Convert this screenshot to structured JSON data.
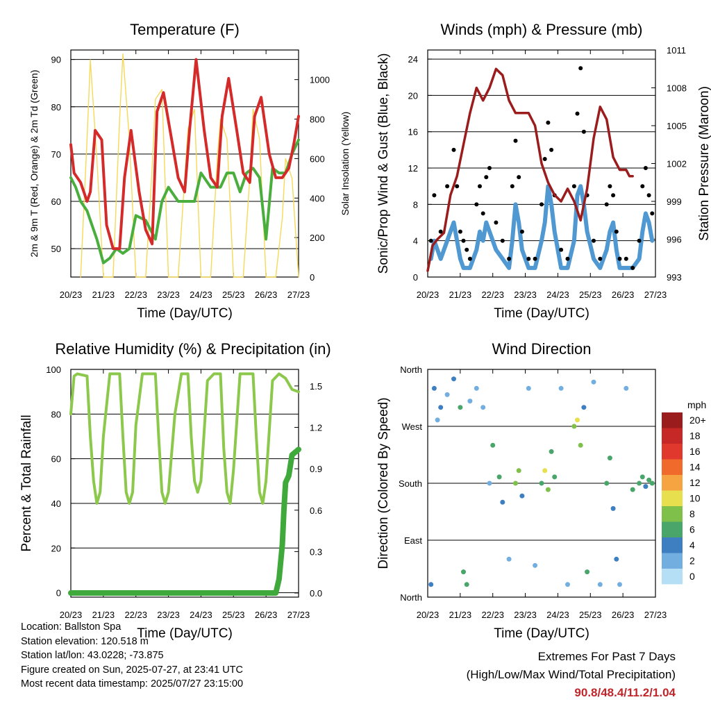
{
  "chart_data": [
    {
      "type": "line",
      "title": "Temperature (F)",
      "xlabel": "Time (Day/UTC)",
      "ylabel": "2m & 9m T (Red, Orange) & 2m Td (Green)",
      "y2label": "Solar Insolation (Yellow)",
      "ylim": [
        44,
        92
      ],
      "y2lim": [
        0,
        1150
      ],
      "yticks": [
        50,
        60,
        70,
        80,
        90
      ],
      "y2ticks": [
        0,
        200,
        400,
        600,
        800,
        1000
      ],
      "xticks": [
        "20/23",
        "21/23",
        "22/23",
        "23/23",
        "24/23",
        "25/23",
        "26/23",
        "27/23"
      ],
      "grid": true,
      "series": [
        {
          "name": "2m T",
          "color": "#d42a2a",
          "x": [
            0,
            0.1,
            0.3,
            0.5,
            0.6,
            0.75,
            0.95,
            1.1,
            1.3,
            1.5,
            1.65,
            1.85,
            2.1,
            2.3,
            2.5,
            2.65,
            2.85,
            3.1,
            3.3,
            3.5,
            3.65,
            3.85,
            4.1,
            4.3,
            4.5,
            4.65,
            4.85,
            5.1,
            5.3,
            5.5,
            5.65,
            5.85,
            6.1,
            6.3,
            6.5,
            6.7,
            6.85,
            7.0
          ],
          "values": [
            72,
            66,
            64,
            60,
            62,
            75,
            73,
            55,
            50,
            50,
            65,
            75,
            62,
            54,
            51,
            79,
            83,
            73,
            65,
            62,
            75,
            90,
            75,
            65,
            63,
            78,
            86,
            75,
            66,
            64,
            78,
            82,
            70,
            65,
            65,
            67,
            72,
            78
          ]
        },
        {
          "name": "2m Td",
          "color": "#4aae3e",
          "x": [
            0,
            0.15,
            0.3,
            0.5,
            0.6,
            0.8,
            1.0,
            1.2,
            1.4,
            1.6,
            1.8,
            2.0,
            2.3,
            2.6,
            2.8,
            3.0,
            3.3,
            3.5,
            3.8,
            4.0,
            4.3,
            4.6,
            4.8,
            5.0,
            5.2,
            5.4,
            5.6,
            5.8,
            6.0,
            6.2,
            6.4,
            6.6,
            6.8,
            7.0
          ],
          "values": [
            65,
            63,
            60,
            58,
            56,
            52,
            47,
            48,
            50,
            49,
            50,
            57,
            56,
            52,
            60,
            63,
            60,
            60,
            60,
            66,
            63,
            63,
            66,
            66,
            62,
            66,
            67,
            65,
            52,
            67,
            66,
            66,
            70,
            73
          ]
        },
        {
          "name": "Solar Insolation",
          "color": "#f4d95a",
          "axis": "y2",
          "x": [
            0.3,
            0.5,
            0.6,
            0.8,
            1.0,
            1.3,
            1.5,
            1.6,
            1.8,
            2.0,
            2.3,
            2.5,
            2.6,
            2.8,
            3.0,
            3.3,
            3.5,
            3.6,
            3.8,
            4.0,
            4.3,
            4.5,
            4.6,
            4.8,
            5.0,
            5.3,
            5.5,
            5.6,
            5.8,
            6.0,
            6.3,
            6.5,
            6.6,
            6.8,
            7.0
          ],
          "values": [
            0,
            700,
            1100,
            600,
            0,
            0,
            800,
            1130,
            700,
            0,
            0,
            550,
            900,
            950,
            0,
            0,
            500,
            750,
            850,
            0,
            0,
            600,
            800,
            700,
            0,
            0,
            500,
            850,
            700,
            0,
            0,
            300,
            600,
            500,
            0
          ]
        }
      ]
    },
    {
      "type": "line",
      "title": "Winds (mph) & Pressure (mb)",
      "xlabel": "Time (Day/UTC)",
      "ylabel": "Sonic/Prop Wind & Gust (Blue, Black)",
      "y2label": "Station Pressure (Maroon)",
      "ylim": [
        0,
        25
      ],
      "y2lim": [
        993,
        1011
      ],
      "yticks": [
        0,
        4,
        8,
        12,
        16,
        20,
        24
      ],
      "y2ticks": [
        993,
        996,
        999,
        1002,
        1005,
        1008,
        1011
      ],
      "xticks": [
        "20/23",
        "21/23",
        "22/23",
        "23/23",
        "24/23",
        "25/23",
        "26/23",
        "27/23"
      ],
      "grid": true,
      "series": [
        {
          "name": "Station Pressure",
          "color": "#9b1c1c",
          "axis": "y2",
          "x": [
            0,
            0.15,
            0.3,
            0.5,
            0.7,
            0.9,
            1.1,
            1.3,
            1.5,
            1.7,
            1.9,
            2.1,
            2.3,
            2.5,
            2.7,
            2.9,
            3.1,
            3.3,
            3.5,
            3.7,
            3.9,
            4.1,
            4.3,
            4.5,
            4.7,
            4.9,
            5.1,
            5.3,
            5.5,
            5.7,
            5.9,
            6.1,
            6.2,
            6.3
          ],
          "values": [
            993.5,
            995.5,
            996,
            996.5,
            999.5,
            1001,
            1003.5,
            1006,
            1008,
            1007,
            1008,
            1009.5,
            1009,
            1007,
            1006,
            1006,
            1006,
            1005,
            1002,
            1000.5,
            999.5,
            999,
            1000,
            999,
            997.5,
            1000,
            1004,
            1006.5,
            1005.5,
            1002.5,
            1001.5,
            1001.5,
            1001,
            1001
          ]
        },
        {
          "name": "Gust",
          "color": "#000000",
          "kind": "scatter",
          "x": [
            0.1,
            0.2,
            0.4,
            0.6,
            0.8,
            0.9,
            1.0,
            1.1,
            1.2,
            1.3,
            1.5,
            1.6,
            1.7,
            1.8,
            1.9,
            2.1,
            2.3,
            2.5,
            2.6,
            2.7,
            2.8,
            2.9,
            3.1,
            3.3,
            3.5,
            3.6,
            3.7,
            3.8,
            3.9,
            4.1,
            4.3,
            4.5,
            4.6,
            4.7,
            4.8,
            4.9,
            5.1,
            5.3,
            5.5,
            5.6,
            5.7,
            5.8,
            5.9,
            6.1,
            6.3,
            6.5,
            6.6,
            6.7,
            6.8,
            6.9
          ],
          "values": [
            4,
            9,
            5,
            10,
            14,
            10,
            5,
            4,
            3,
            2,
            8,
            10,
            7,
            11,
            12,
            6,
            4,
            2,
            10,
            15,
            11,
            5,
            2,
            2,
            8,
            13,
            17,
            14,
            9,
            3,
            2,
            10,
            18,
            23,
            16,
            9,
            4,
            2,
            8,
            10,
            9,
            5,
            2,
            2,
            1,
            4,
            10,
            12,
            9,
            7
          ]
        },
        {
          "name": "Wind",
          "color": "#4f98d2",
          "x": [
            0.1,
            0.2,
            0.4,
            0.6,
            0.8,
            0.9,
            1.0,
            1.1,
            1.2,
            1.3,
            1.5,
            1.6,
            1.7,
            1.8,
            1.9,
            2.1,
            2.3,
            2.5,
            2.6,
            2.7,
            2.8,
            2.9,
            3.1,
            3.3,
            3.5,
            3.6,
            3.7,
            3.8,
            3.9,
            4.1,
            4.3,
            4.5,
            4.6,
            4.7,
            4.8,
            4.9,
            5.1,
            5.3,
            5.5,
            5.6,
            5.7,
            5.8,
            5.9,
            6.1,
            6.3,
            6.5,
            6.6,
            6.7,
            6.8,
            6.9
          ],
          "values": [
            2,
            4,
            2,
            4,
            6,
            4,
            2,
            1,
            1,
            1,
            3,
            5,
            4,
            6,
            5,
            3,
            2,
            1,
            4,
            8,
            6,
            3,
            1,
            1,
            4,
            6,
            10,
            8,
            5,
            1,
            1,
            4,
            9,
            10,
            8,
            5,
            2,
            1,
            3,
            5,
            6,
            3,
            1,
            1,
            1,
            2,
            5,
            7,
            6,
            4
          ]
        }
      ]
    },
    {
      "type": "line",
      "title": "Relative Humidity (%) & Precipitation (in)",
      "xlabel": "Time (Day/UTC)",
      "ylabel": "Percent & Total Rainfall",
      "ylim": [
        -2,
        100
      ],
      "y2lim": [
        -0.03,
        1.62
      ],
      "yticks": [
        0,
        20,
        40,
        60,
        80,
        100
      ],
      "y2ticks": [
        0.0,
        0.3,
        0.6,
        0.9,
        1.2,
        1.5
      ],
      "xticks": [
        "20/23",
        "21/23",
        "22/23",
        "23/23",
        "24/23",
        "25/23",
        "26/23",
        "27/23"
      ],
      "grid": true,
      "series": [
        {
          "name": "Relative Humidity",
          "color": "#8cc84b",
          "x": [
            0,
            0.1,
            0.2,
            0.5,
            0.6,
            0.7,
            0.8,
            0.9,
            1.0,
            1.2,
            1.3,
            1.5,
            1.6,
            1.7,
            1.8,
            1.9,
            2.0,
            2.2,
            2.4,
            2.6,
            2.7,
            2.8,
            2.9,
            3.0,
            3.2,
            3.4,
            3.6,
            3.7,
            3.8,
            3.9,
            4.0,
            4.2,
            4.4,
            4.6,
            4.7,
            4.8,
            4.9,
            5.0,
            5.2,
            5.4,
            5.6,
            5.7,
            5.8,
            5.9,
            6.0,
            6.2,
            6.4,
            6.6,
            6.8,
            7.0
          ],
          "values": [
            80,
            97,
            98,
            97,
            70,
            50,
            40,
            45,
            70,
            98,
            98,
            98,
            70,
            45,
            40,
            45,
            75,
            98,
            98,
            98,
            70,
            45,
            40,
            45,
            80,
            98,
            98,
            70,
            50,
            45,
            50,
            95,
            98,
            98,
            65,
            45,
            40,
            55,
            98,
            98,
            98,
            70,
            45,
            40,
            50,
            95,
            98,
            96,
            91,
            90
          ]
        },
        {
          "name": "Total Rainfall",
          "color": "#3fa93b",
          "axis": "y2",
          "x": [
            0,
            1,
            2,
            3,
            4,
            5,
            6,
            6.2,
            6.3,
            6.4,
            6.5,
            6.55,
            6.6,
            6.7,
            6.8,
            7.0
          ],
          "values": [
            0,
            0,
            0,
            0,
            0,
            0,
            0,
            0,
            0,
            0.1,
            0.35,
            0.6,
            0.8,
            0.85,
            1.0,
            1.04
          ]
        }
      ]
    },
    {
      "type": "scatter",
      "title": "Wind Direction",
      "xlabel": "Time (Day/UTC)",
      "ylabel": "Direction (Colored By Speed)",
      "yticks": [
        "North",
        "East",
        "South",
        "West",
        "North"
      ],
      "ylim": [
        0,
        360
      ],
      "xticks": [
        "20/23",
        "21/23",
        "22/23",
        "23/23",
        "24/23",
        "25/23",
        "26/23",
        "27/23"
      ],
      "grid": true,
      "legend": {
        "title": "mph",
        "placement": "right",
        "labels": [
          "20+",
          "18",
          "16",
          "14",
          "12",
          "10",
          "8",
          "6",
          "4",
          "2",
          "0"
        ],
        "colors": [
          "#9b1c1c",
          "#c62828",
          "#e0382c",
          "#f06a2c",
          "#f6a441",
          "#e8df4e",
          "#7fc04a",
          "#4aa56b",
          "#3d7fc0",
          "#72aee0",
          "#b5dff4"
        ]
      },
      "points": [
        {
          "x": 0.1,
          "y": 20,
          "s": 4
        },
        {
          "x": 0.2,
          "y": 330,
          "s": 4
        },
        {
          "x": 0.3,
          "y": 280,
          "s": 2
        },
        {
          "x": 0.4,
          "y": 300,
          "s": 3
        },
        {
          "x": 0.6,
          "y": 320,
          "s": 2
        },
        {
          "x": 0.8,
          "y": 345,
          "s": 4
        },
        {
          "x": 1.0,
          "y": 300,
          "s": 5
        },
        {
          "x": 1.1,
          "y": 40,
          "s": 6
        },
        {
          "x": 1.2,
          "y": 20,
          "s": 5
        },
        {
          "x": 1.3,
          "y": 310,
          "s": 2
        },
        {
          "x": 1.5,
          "y": 330,
          "s": 1
        },
        {
          "x": 1.7,
          "y": 300,
          "s": 2
        },
        {
          "x": 1.9,
          "y": 180,
          "s": 2
        },
        {
          "x": 2.0,
          "y": 240,
          "s": 5
        },
        {
          "x": 2.2,
          "y": 190,
          "s": 6
        },
        {
          "x": 2.3,
          "y": 150,
          "s": 3
        },
        {
          "x": 2.5,
          "y": 60,
          "s": 1
        },
        {
          "x": 2.7,
          "y": 180,
          "s": 7
        },
        {
          "x": 2.8,
          "y": 200,
          "s": 8
        },
        {
          "x": 2.9,
          "y": 160,
          "s": 4
        },
        {
          "x": 3.1,
          "y": 330,
          "s": 1
        },
        {
          "x": 3.3,
          "y": 50,
          "s": 1
        },
        {
          "x": 3.5,
          "y": 180,
          "s": 6
        },
        {
          "x": 3.6,
          "y": 200,
          "s": 10
        },
        {
          "x": 3.7,
          "y": 170,
          "s": 8
        },
        {
          "x": 3.8,
          "y": 230,
          "s": 6
        },
        {
          "x": 3.9,
          "y": 190,
          "s": 5
        },
        {
          "x": 4.1,
          "y": 330,
          "s": 1
        },
        {
          "x": 4.3,
          "y": 20,
          "s": 2
        },
        {
          "x": 4.5,
          "y": 270,
          "s": 8
        },
        {
          "x": 4.6,
          "y": 280,
          "s": 10
        },
        {
          "x": 4.7,
          "y": 240,
          "s": 7
        },
        {
          "x": 4.8,
          "y": 300,
          "s": 4
        },
        {
          "x": 4.9,
          "y": 40,
          "s": 6
        },
        {
          "x": 5.1,
          "y": 340,
          "s": 2
        },
        {
          "x": 5.3,
          "y": 20,
          "s": 1
        },
        {
          "x": 5.5,
          "y": 180,
          "s": 5
        },
        {
          "x": 5.6,
          "y": 220,
          "s": 6
        },
        {
          "x": 5.7,
          "y": 140,
          "s": 4
        },
        {
          "x": 5.8,
          "y": 60,
          "s": 3
        },
        {
          "x": 5.9,
          "y": 20,
          "s": 2
        },
        {
          "x": 6.1,
          "y": 330,
          "s": 1
        },
        {
          "x": 6.3,
          "y": 170,
          "s": 5
        },
        {
          "x": 6.5,
          "y": 180,
          "s": 6
        },
        {
          "x": 6.6,
          "y": 190,
          "s": 5
        },
        {
          "x": 6.7,
          "y": 175,
          "s": 4
        },
        {
          "x": 6.8,
          "y": 185,
          "s": 6
        },
        {
          "x": 6.9,
          "y": 180,
          "s": 5
        }
      ]
    }
  ],
  "footer": {
    "location": "Location: Ballston Spa",
    "elevation": "Station elevation: 120.518 m",
    "latlon": "Station lat/lon: 43.0228; -73.875",
    "created": "Figure created on Sun, 2025-07-27, at 23:41 UTC",
    "recent": "Most recent data timestamp: 2025/07/27 23:15:00"
  },
  "extremes": {
    "title": "Extremes For Past 7 Days",
    "subtitle": "(High/Low/Max Wind/Total Precipitation)",
    "values": "90.8/48.4/11.2/1.04",
    "color": "#c0252a"
  }
}
